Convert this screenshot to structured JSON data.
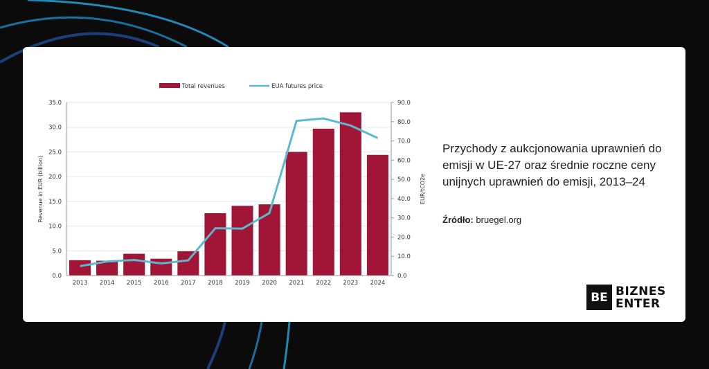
{
  "caption": {
    "title": "Przychody z aukcjonowania uprawnień do emisji w UE-27 oraz średnie roczne ceny unijnych uprawnień do emisji, 2013–24",
    "source_label": "Źródło:",
    "source_value": "bruegel.org"
  },
  "logo": {
    "mark": "BE",
    "line1": "BIZNES",
    "line2": "ENTER"
  },
  "colors": {
    "bar": "#a11636",
    "line": "#5bb8d1",
    "background": "#0b0b0c",
    "arc": "#1f7fae"
  },
  "chart_data": {
    "type": "bar+line",
    "categories": [
      "2013",
      "2014",
      "2015",
      "2016",
      "2017",
      "2018",
      "2019",
      "2020",
      "2021",
      "2022",
      "2023",
      "2024"
    ],
    "series": [
      {
        "name": "Total revenues",
        "type": "bar",
        "axis": "left",
        "values": [
          3.1,
          3.0,
          4.4,
          3.4,
          4.9,
          12.6,
          14.1,
          14.4,
          25.0,
          29.7,
          33.0,
          24.4
        ]
      },
      {
        "name": "EUA futures price",
        "type": "line",
        "axis": "right",
        "values": [
          4.9,
          7.3,
          8.1,
          6.3,
          7.9,
          24.6,
          24.4,
          32.5,
          80.4,
          81.7,
          78.0,
          71.5
        ]
      }
    ],
    "ylabel": "Revenue in EUR (billion)",
    "y2label": "EUR/tCO2e",
    "ylim": [
      0,
      35
    ],
    "y2lim": [
      0,
      90
    ],
    "yticks": [
      "0.0",
      "5.0",
      "10.0",
      "15.0",
      "20.0",
      "25.0",
      "30.0",
      "35.0"
    ],
    "y2ticks": [
      "0.0",
      "10.0",
      "20.0",
      "30.0",
      "40.0",
      "50.0",
      "60.0",
      "70.0",
      "80.0",
      "90.0"
    ],
    "grid": true,
    "legend": "top-center"
  }
}
